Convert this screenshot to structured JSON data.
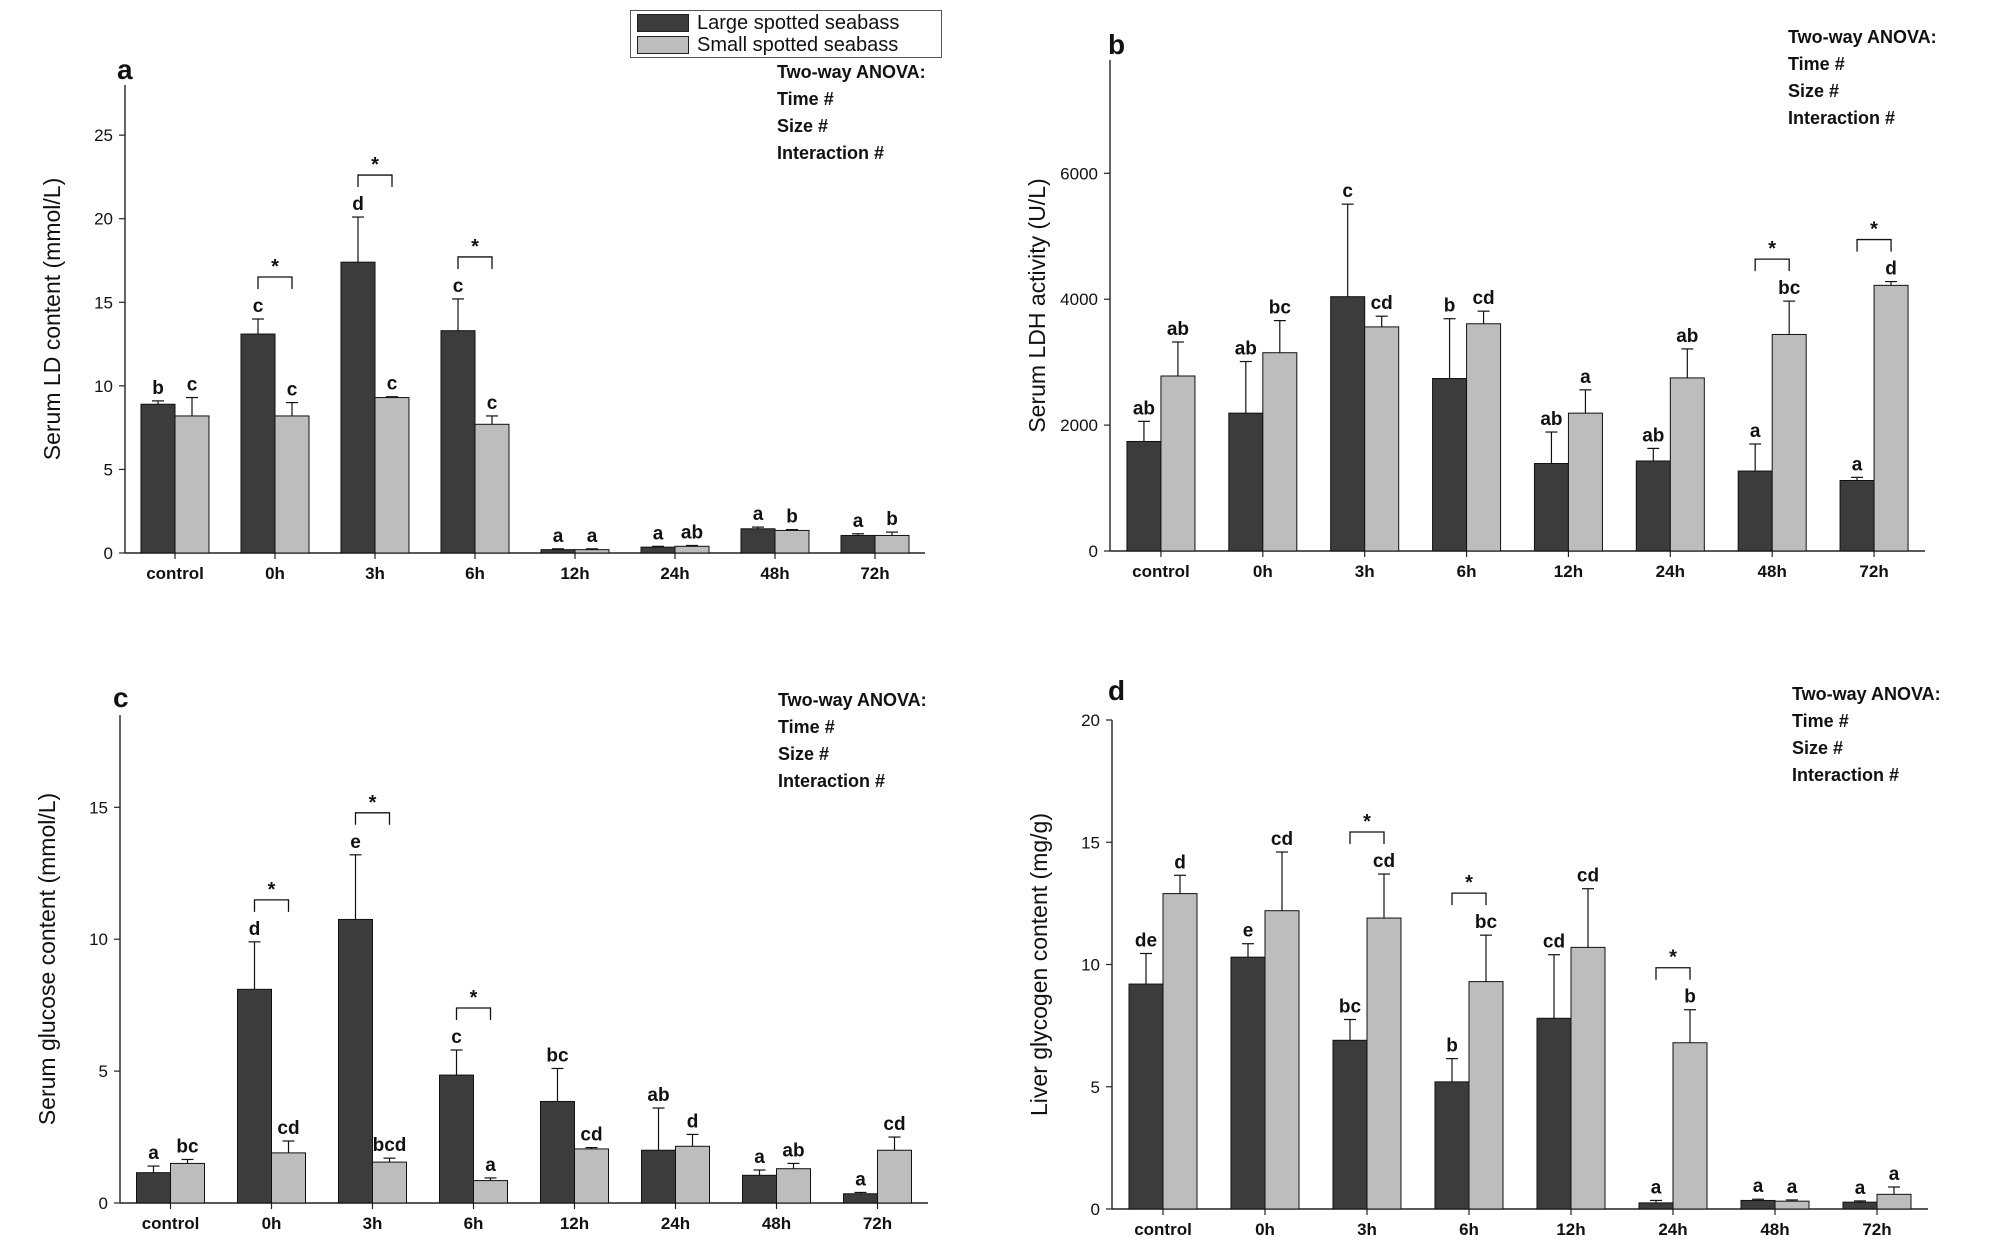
{
  "legend": [
    {
      "name": "Large spotted seabass",
      "color": "#3c3c3c"
    },
    {
      "name": "Small spotted seabass",
      "color": "#bdbdbd"
    }
  ],
  "chart_data": [
    {
      "panel": "a",
      "type": "bar",
      "ylabel": "Serum LD content (mmol/L)",
      "ylim": [
        0,
        28
      ],
      "yticks": [
        0,
        5,
        10,
        15,
        20,
        25
      ],
      "categories": [
        "control",
        "0h",
        "3h",
        "6h",
        "12h",
        "24h",
        "48h",
        "72h"
      ],
      "series": [
        {
          "name": "Large spotted seabass",
          "values": [
            8.9,
            13.1,
            17.4,
            13.3,
            0.2,
            0.35,
            1.45,
            1.05
          ],
          "errors": [
            0.2,
            0.9,
            2.7,
            1.9,
            0.05,
            0.05,
            0.1,
            0.1
          ],
          "labels": [
            "b",
            "c",
            "d",
            "c",
            "a",
            "a",
            "a",
            "a"
          ]
        },
        {
          "name": "Small spotted seabass",
          "values": [
            8.2,
            8.2,
            9.3,
            7.7,
            0.2,
            0.4,
            1.35,
            1.05
          ],
          "errors": [
            1.1,
            0.8,
            0.05,
            0.5,
            0.05,
            0.05,
            0.05,
            0.2
          ],
          "labels": [
            "c",
            "c",
            "c",
            "c",
            "a",
            "ab",
            "b",
            "b"
          ]
        }
      ],
      "significance": [
        "0h",
        "3h",
        "6h"
      ],
      "anova": [
        "Two-way ANOVA:",
        "Time #",
        "Size #",
        "Interaction #"
      ]
    },
    {
      "panel": "b",
      "type": "bar",
      "ylabel": "Serum LDH activity (U/L)",
      "ylim": [
        0,
        7800
      ],
      "yticks": [
        0,
        2000,
        4000,
        6000
      ],
      "categories": [
        "control",
        "0h",
        "3h",
        "6h",
        "12h",
        "24h",
        "48h",
        "72h"
      ],
      "series": [
        {
          "name": "Large spotted seabass",
          "values": [
            1740,
            2190,
            4040,
            2740,
            1390,
            1430,
            1270,
            1120
          ],
          "errors": [
            320,
            820,
            1470,
            950,
            500,
            200,
            430,
            50
          ],
          "labels": [
            "ab",
            "ab",
            "c",
            "b",
            "ab",
            "ab",
            "a",
            "a"
          ]
        },
        {
          "name": "Small spotted seabass",
          "values": [
            2780,
            3150,
            3560,
            3610,
            2190,
            2750,
            3440,
            4220
          ],
          "errors": [
            540,
            510,
            170,
            200,
            370,
            460,
            530,
            60
          ],
          "labels": [
            "ab",
            "bc",
            "cd",
            "cd",
            "a",
            "ab",
            "bc",
            "d"
          ]
        }
      ],
      "significance": [
        "48h",
        "72h"
      ],
      "anova": [
        "Two-way ANOVA:",
        "Time #",
        "Size #",
        "Interaction #"
      ]
    },
    {
      "panel": "c",
      "type": "bar",
      "ylabel": "Serum glucose content (mmol/L)",
      "ylim": [
        0,
        18.5
      ],
      "yticks": [
        0,
        5,
        10,
        15
      ],
      "categories": [
        "control",
        "0h",
        "3h",
        "6h",
        "12h",
        "24h",
        "48h",
        "72h"
      ],
      "series": [
        {
          "name": "Large spotted seabass",
          "values": [
            1.15,
            8.1,
            10.75,
            4.85,
            3.85,
            2.0,
            1.05,
            0.35
          ],
          "errors": [
            0.25,
            1.8,
            2.45,
            0.95,
            1.25,
            1.6,
            0.2,
            0.05
          ],
          "labels": [
            "a",
            "d",
            "e",
            "c",
            "bc",
            "ab",
            "a",
            "a"
          ]
        },
        {
          "name": "Small spotted seabass",
          "values": [
            1.5,
            1.9,
            1.55,
            0.85,
            2.05,
            2.15,
            1.3,
            2.0
          ],
          "errors": [
            0.15,
            0.45,
            0.15,
            0.1,
            0.05,
            0.45,
            0.2,
            0.5
          ],
          "labels": [
            "bc",
            "cd",
            "bcd",
            "a",
            "cd",
            "d",
            "ab",
            "cd"
          ]
        }
      ],
      "significance": [
        "0h",
        "3h",
        "6h"
      ],
      "anova": [
        "Two-way ANOVA:",
        "Time #",
        "Size #",
        "Interaction #"
      ]
    },
    {
      "panel": "d",
      "type": "bar",
      "ylabel": "Liver glycogen content (mg/g)",
      "ylim": [
        0,
        20
      ],
      "yticks": [
        0,
        5,
        10,
        15,
        20
      ],
      "categories": [
        "control",
        "0h",
        "3h",
        "6h",
        "12h",
        "24h",
        "48h",
        "72h"
      ],
      "series": [
        {
          "name": "Large spotted seabass",
          "values": [
            9.2,
            10.3,
            6.9,
            5.2,
            7.8,
            0.25,
            0.35,
            0.28
          ],
          "errors": [
            1.25,
            0.55,
            0.85,
            0.95,
            2.6,
            0.1,
            0.05,
            0.05
          ],
          "labels": [
            "de",
            "e",
            "bc",
            "b",
            "cd",
            "a",
            "a",
            "a"
          ]
        },
        {
          "name": "Small spotted seabass",
          "values": [
            12.9,
            12.2,
            11.9,
            9.3,
            10.7,
            6.8,
            0.32,
            0.6
          ],
          "errors": [
            0.75,
            2.4,
            1.8,
            1.9,
            2.4,
            1.35,
            0.05,
            0.3
          ],
          "labels": [
            "d",
            "cd",
            "cd",
            "bc",
            "cd",
            "b",
            "a",
            "a"
          ]
        }
      ],
      "significance": [
        "3h",
        "6h",
        "24h"
      ],
      "anova": [
        "Two-way ANOVA:",
        "Time #",
        "Size #",
        "Interaction #"
      ]
    }
  ]
}
